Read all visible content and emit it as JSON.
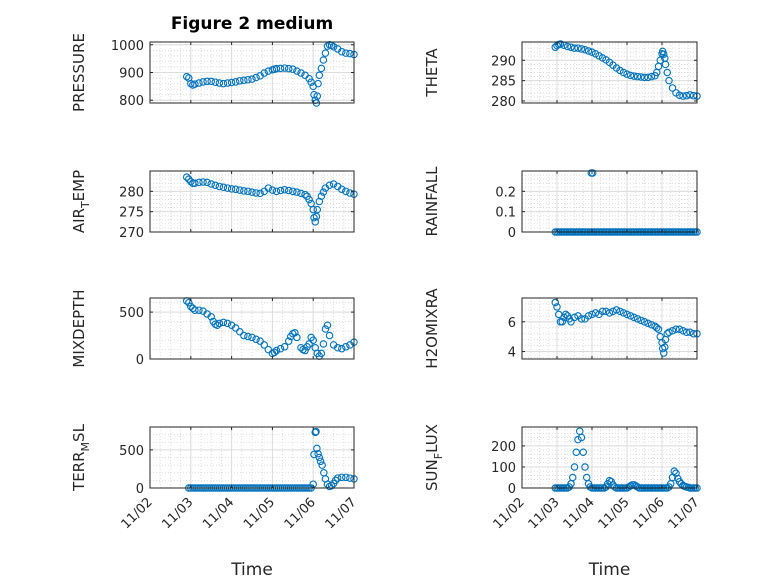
{
  "figure": {
    "title": "Figure 2 medium"
  },
  "chart_data": [
    {
      "type": "scatter",
      "panel": "pressure",
      "ylabel": "PRESSURE",
      "ylabel_sub": "",
      "ylabel_tail": "",
      "xlabel": "",
      "xlim": [
        0,
        5
      ],
      "ylim": [
        790,
        1010
      ],
      "yticks": [
        800,
        900,
        1000
      ],
      "ytick_labels": [
        "800",
        "900",
        "1000"
      ],
      "xticks": [
        0,
        1,
        2,
        3,
        4,
        5
      ],
      "xtick_labels": [],
      "title": "Figure 2 medium",
      "marker_color": "#0072BD",
      "grid": true,
      "x": [
        0.9,
        0.95,
        1.0,
        1.05,
        1.1,
        1.2,
        1.3,
        1.4,
        1.5,
        1.6,
        1.7,
        1.8,
        1.9,
        2.0,
        2.1,
        2.2,
        2.3,
        2.4,
        2.5,
        2.6,
        2.7,
        2.8,
        2.9,
        3.0,
        3.05,
        3.1,
        3.2,
        3.3,
        3.4,
        3.5,
        3.6,
        3.7,
        3.8,
        3.9,
        3.95,
        4.0,
        4.02,
        4.05,
        4.08,
        4.1,
        4.12,
        4.15,
        4.2,
        4.25,
        4.3,
        4.35,
        4.4,
        4.45,
        4.5,
        4.6,
        4.7,
        4.8,
        4.9,
        5.0
      ],
      "y": [
        885,
        880,
        860,
        855,
        858,
        862,
        866,
        868,
        868,
        865,
        862,
        860,
        862,
        864,
        866,
        870,
        872,
        874,
        876,
        882,
        888,
        898,
        905,
        910,
        912,
        914,
        915,
        916,
        914,
        912,
        905,
        898,
        890,
        878,
        865,
        850,
        820,
        800,
        790,
        815,
        860,
        890,
        915,
        945,
        970,
        995,
        1000,
        998,
        993,
        985,
        975,
        970,
        968,
        965
      ]
    },
    {
      "type": "scatter",
      "panel": "theta",
      "ylabel": "THETA",
      "ylabel_sub": "",
      "ylabel_tail": "",
      "xlabel": "",
      "xlim": [
        0,
        5
      ],
      "ylim": [
        279.5,
        294.5
      ],
      "yticks": [
        280,
        285,
        290
      ],
      "ytick_labels": [
        "280",
        "285",
        "290"
      ],
      "xticks": [
        0,
        1,
        2,
        3,
        4,
        5
      ],
      "xtick_labels": [],
      "marker_color": "#0072BD",
      "grid": true,
      "x": [
        0.95,
        1.0,
        1.05,
        1.1,
        1.2,
        1.3,
        1.4,
        1.5,
        1.6,
        1.7,
        1.8,
        1.9,
        2.0,
        2.1,
        2.2,
        2.3,
        2.4,
        2.5,
        2.6,
        2.7,
        2.8,
        2.9,
        3.0,
        3.1,
        3.2,
        3.3,
        3.4,
        3.5,
        3.6,
        3.7,
        3.8,
        3.85,
        3.9,
        3.95,
        4.0,
        4.02,
        4.05,
        4.08,
        4.1,
        4.15,
        4.2,
        4.3,
        4.4,
        4.5,
        4.6,
        4.7,
        4.8,
        4.9,
        5.0
      ],
      "y": [
        293.2,
        293.6,
        293.9,
        294.0,
        293.7,
        293.4,
        293.2,
        293.0,
        293.0,
        292.8,
        292.6,
        292.3,
        292.0,
        291.6,
        291.1,
        290.6,
        290.1,
        289.5,
        288.8,
        288.1,
        287.5,
        287.0,
        286.6,
        286.3,
        286.1,
        286.0,
        285.9,
        285.8,
        285.8,
        286.0,
        286.2,
        287.0,
        288.5,
        290.0,
        291.6,
        292.2,
        291.5,
        290.5,
        289.0,
        287.0,
        285.0,
        283.2,
        282.0,
        281.4,
        281.2,
        281.3,
        281.5,
        281.3,
        281.2
      ]
    },
    {
      "type": "scatter",
      "panel": "air-temp",
      "ylabel": "AIR",
      "ylabel_sub": "T",
      "ylabel_tail": "EMP",
      "xlabel": "",
      "xlim": [
        0,
        5
      ],
      "ylim": [
        270,
        285
      ],
      "yticks": [
        270,
        275,
        280
      ],
      "ytick_labels": [
        "270",
        "275",
        "280"
      ],
      "xticks": [
        0,
        1,
        2,
        3,
        4,
        5
      ],
      "xtick_labels": [],
      "marker_color": "#0072BD",
      "grid": true,
      "x": [
        0.9,
        0.95,
        1.0,
        1.05,
        1.1,
        1.2,
        1.3,
        1.4,
        1.5,
        1.6,
        1.7,
        1.8,
        1.9,
        2.0,
        2.1,
        2.2,
        2.3,
        2.4,
        2.5,
        2.6,
        2.7,
        2.8,
        2.9,
        3.0,
        3.1,
        3.2,
        3.3,
        3.4,
        3.5,
        3.6,
        3.7,
        3.8,
        3.85,
        3.9,
        3.95,
        4.0,
        4.02,
        4.05,
        4.08,
        4.1,
        4.15,
        4.2,
        4.25,
        4.3,
        4.4,
        4.5,
        4.6,
        4.7,
        4.8,
        4.9,
        5.0
      ],
      "y": [
        283.5,
        283.0,
        282.4,
        282.0,
        282.0,
        282.2,
        282.3,
        282.2,
        281.8,
        281.5,
        281.2,
        281.0,
        280.8,
        280.6,
        280.5,
        280.3,
        280.1,
        280.0,
        279.8,
        279.6,
        279.5,
        280.0,
        280.8,
        280.3,
        280.0,
        280.2,
        280.4,
        280.2,
        280.0,
        279.8,
        279.5,
        279.2,
        278.8,
        278.0,
        277.0,
        275.5,
        273.5,
        272.5,
        273.8,
        275.5,
        277.5,
        278.8,
        279.8,
        280.8,
        281.5,
        281.8,
        281.2,
        280.5,
        280.0,
        279.6,
        279.3
      ]
    },
    {
      "type": "scatter",
      "panel": "rainfall",
      "ylabel": "RAINFALL",
      "ylabel_sub": "",
      "ylabel_tail": "",
      "xlabel": "",
      "xlim": [
        0,
        5
      ],
      "ylim": [
        0,
        0.3
      ],
      "yticks": [
        0,
        0.1,
        0.2
      ],
      "ytick_labels": [
        "0",
        "0.1",
        "0.2"
      ],
      "xticks": [
        0,
        1,
        2,
        3,
        4,
        5
      ],
      "xtick_labels": [],
      "marker_color": "#0072BD",
      "grid": true,
      "x": [
        0.95,
        1.0,
        1.05,
        1.1,
        1.15,
        1.2,
        1.25,
        1.3,
        1.35,
        1.4,
        1.45,
        1.5,
        1.55,
        1.6,
        1.65,
        1.7,
        1.75,
        1.8,
        1.85,
        1.9,
        1.95,
        2.0,
        2.05,
        2.1,
        2.15,
        2.2,
        2.25,
        2.3,
        2.35,
        2.4,
        2.45,
        2.5,
        2.55,
        2.6,
        2.65,
        2.7,
        2.75,
        2.8,
        2.85,
        2.9,
        2.95,
        3.0,
        3.05,
        3.1,
        3.15,
        3.2,
        3.25,
        3.3,
        3.35,
        3.4,
        3.45,
        3.5,
        3.55,
        3.6,
        3.65,
        3.7,
        3.75,
        3.8,
        3.85,
        3.9,
        3.95,
        4.0,
        4.05,
        4.1,
        4.15,
        4.2,
        4.25,
        4.3,
        4.35,
        4.4,
        4.45,
        4.5,
        4.55,
        4.6,
        4.65,
        4.7,
        4.75,
        4.8,
        4.85,
        4.9,
        4.95,
        5.0,
        1.98,
        2.02
      ],
      "y": [
        0,
        0,
        0,
        0,
        0,
        0,
        0,
        0,
        0,
        0,
        0,
        0,
        0,
        0,
        0,
        0,
        0,
        0,
        0,
        0,
        0,
        0,
        0,
        0,
        0,
        0,
        0,
        0,
        0,
        0,
        0,
        0,
        0,
        0,
        0,
        0,
        0,
        0,
        0,
        0,
        0,
        0,
        0,
        0,
        0,
        0,
        0,
        0,
        0,
        0,
        0,
        0,
        0,
        0,
        0,
        0,
        0,
        0,
        0,
        0,
        0,
        0,
        0,
        0,
        0,
        0,
        0,
        0,
        0,
        0,
        0,
        0,
        0,
        0,
        0,
        0,
        0,
        0,
        0,
        0,
        0,
        0,
        0.29,
        0.29
      ]
    },
    {
      "type": "scatter",
      "panel": "mixdepth",
      "ylabel": "MIXDEPTH",
      "ylabel_sub": "",
      "ylabel_tail": "",
      "xlabel": "",
      "xlim": [
        0,
        5
      ],
      "ylim": [
        0,
        650
      ],
      "yticks": [
        0,
        500
      ],
      "ytick_labels": [
        "0",
        "500"
      ],
      "xticks": [
        0,
        1,
        2,
        3,
        4,
        5
      ],
      "xtick_labels": [],
      "marker_color": "#0072BD",
      "grid": true,
      "x": [
        0.9,
        0.95,
        1.0,
        1.05,
        1.1,
        1.2,
        1.3,
        1.4,
        1.5,
        1.55,
        1.6,
        1.65,
        1.7,
        1.8,
        1.9,
        2.0,
        2.1,
        2.2,
        2.3,
        2.4,
        2.5,
        2.6,
        2.7,
        2.8,
        2.9,
        3.0,
        3.05,
        3.1,
        3.2,
        3.3,
        3.4,
        3.45,
        3.5,
        3.55,
        3.6,
        3.7,
        3.75,
        3.8,
        3.85,
        3.9,
        3.95,
        4.0,
        4.05,
        4.1,
        4.15,
        4.2,
        4.25,
        4.3,
        4.35,
        4.4,
        4.5,
        4.6,
        4.7,
        4.8,
        4.9,
        5.0
      ],
      "y": [
        620,
        600,
        560,
        540,
        520,
        520,
        510,
        480,
        450,
        400,
        370,
        360,
        380,
        390,
        380,
        360,
        330,
        290,
        250,
        240,
        230,
        210,
        190,
        150,
        100,
        60,
        70,
        90,
        110,
        130,
        190,
        240,
        270,
        280,
        230,
        120,
        100,
        90,
        130,
        160,
        230,
        200,
        120,
        60,
        30,
        60,
        160,
        320,
        360,
        250,
        150,
        120,
        110,
        130,
        150,
        180
      ]
    },
    {
      "type": "scatter",
      "panel": "h2o-mixratio",
      "ylabel": "H2OMIXRA",
      "ylabel_sub": "",
      "ylabel_tail": "",
      "xlabel": "",
      "xlim": [
        0,
        5
      ],
      "ylim": [
        3.5,
        7.6
      ],
      "yticks": [
        4,
        6
      ],
      "ytick_labels": [
        "4",
        "6"
      ],
      "xticks": [
        0,
        1,
        2,
        3,
        4,
        5
      ],
      "xtick_labels": [],
      "marker_color": "#0072BD",
      "grid": true,
      "x": [
        0.95,
        1.0,
        1.05,
        1.1,
        1.15,
        1.2,
        1.25,
        1.3,
        1.35,
        1.4,
        1.5,
        1.6,
        1.7,
        1.8,
        1.9,
        2.0,
        2.1,
        2.2,
        2.3,
        2.4,
        2.5,
        2.6,
        2.7,
        2.8,
        2.9,
        3.0,
        3.1,
        3.2,
        3.3,
        3.4,
        3.5,
        3.6,
        3.7,
        3.8,
        3.85,
        3.9,
        3.95,
        4.0,
        4.02,
        4.05,
        4.08,
        4.1,
        4.15,
        4.2,
        4.3,
        4.4,
        4.5,
        4.6,
        4.7,
        4.8,
        4.9,
        5.0
      ],
      "y": [
        7.3,
        7.0,
        6.5,
        6.0,
        6.0,
        6.3,
        6.5,
        6.4,
        6.2,
        6.0,
        6.3,
        6.4,
        6.2,
        6.2,
        6.4,
        6.5,
        6.6,
        6.5,
        6.7,
        6.7,
        6.6,
        6.7,
        6.8,
        6.7,
        6.6,
        6.5,
        6.4,
        6.3,
        6.2,
        6.1,
        6.0,
        5.9,
        5.8,
        5.7,
        5.6,
        5.5,
        5.0,
        4.6,
        4.2,
        3.9,
        4.3,
        4.8,
        5.2,
        5.3,
        5.4,
        5.5,
        5.5,
        5.4,
        5.3,
        5.3,
        5.2,
        5.2
      ]
    },
    {
      "type": "scatter",
      "panel": "terr-msl",
      "ylabel": "TERR",
      "ylabel_sub": "M",
      "ylabel_tail": "SL",
      "xlabel": "Time",
      "xlim": [
        0,
        5
      ],
      "ylim": [
        0,
        800
      ],
      "yticks": [
        0,
        500
      ],
      "ytick_labels": [
        "0",
        "500"
      ],
      "xticks": [
        0,
        1,
        2,
        3,
        4,
        5
      ],
      "xtick_labels": [
        "11/02",
        "11/03",
        "11/04",
        "11/05",
        "11/06",
        "11/07"
      ],
      "marker_color": "#0072BD",
      "grid": true,
      "x": [
        0.95,
        1.0,
        1.05,
        1.1,
        1.15,
        1.2,
        1.25,
        1.3,
        1.35,
        1.4,
        1.45,
        1.5,
        1.55,
        1.6,
        1.65,
        1.7,
        1.75,
        1.8,
        1.85,
        1.9,
        1.95,
        2.0,
        2.05,
        2.1,
        2.15,
        2.2,
        2.25,
        2.3,
        2.35,
        2.4,
        2.45,
        2.5,
        2.55,
        2.6,
        2.65,
        2.7,
        2.75,
        2.8,
        2.85,
        2.9,
        2.95,
        3.0,
        3.05,
        3.1,
        3.15,
        3.2,
        3.25,
        3.3,
        3.35,
        3.4,
        3.45,
        3.5,
        3.55,
        3.6,
        3.65,
        3.7,
        3.75,
        3.8,
        3.85,
        3.9,
        3.95,
        4.0,
        4.02,
        4.05,
        4.07,
        4.09,
        4.12,
        4.15,
        4.18,
        4.22,
        4.26,
        4.3,
        4.35,
        4.4,
        4.45,
        4.5,
        4.55,
        4.6,
        4.7,
        4.8,
        4.9,
        5.0
      ],
      "y": [
        0,
        0,
        0,
        0,
        0,
        0,
        0,
        0,
        0,
        0,
        0,
        0,
        0,
        0,
        0,
        0,
        0,
        0,
        0,
        0,
        0,
        0,
        0,
        0,
        0,
        0,
        0,
        0,
        0,
        0,
        0,
        0,
        0,
        0,
        0,
        0,
        0,
        0,
        0,
        0,
        0,
        0,
        0,
        0,
        0,
        0,
        0,
        0,
        0,
        0,
        0,
        0,
        0,
        0,
        0,
        0,
        0,
        0,
        0,
        0,
        0,
        50,
        440,
        730,
        740,
        520,
        450,
        400,
        350,
        300,
        200,
        120,
        50,
        20,
        30,
        60,
        100,
        130,
        140,
        140,
        130,
        120
      ]
    },
    {
      "type": "scatter",
      "panel": "sun-flux",
      "ylabel": "SUN",
      "ylabel_sub": "F",
      "ylabel_tail": "LUX",
      "xlabel": "Time",
      "xlim": [
        0,
        5
      ],
      "ylim": [
        0,
        290
      ],
      "yticks": [
        0,
        100,
        200
      ],
      "ytick_labels": [
        "0",
        "100",
        "200"
      ],
      "xticks": [
        0,
        1,
        2,
        3,
        4,
        5
      ],
      "xtick_labels": [
        "11/02",
        "11/03",
        "11/04",
        "11/05",
        "11/06",
        "11/07"
      ],
      "marker_color": "#0072BD",
      "grid": true,
      "x": [
        0.95,
        1.0,
        1.05,
        1.1,
        1.15,
        1.2,
        1.25,
        1.3,
        1.35,
        1.4,
        1.45,
        1.5,
        1.55,
        1.6,
        1.65,
        1.7,
        1.75,
        1.8,
        1.85,
        1.9,
        1.95,
        2.0,
        2.05,
        2.1,
        2.15,
        2.2,
        2.25,
        2.3,
        2.35,
        2.4,
        2.45,
        2.5,
        2.55,
        2.6,
        2.65,
        2.7,
        2.75,
        2.8,
        2.85,
        2.9,
        2.95,
        3.0,
        3.05,
        3.1,
        3.15,
        3.2,
        3.25,
        3.3,
        3.35,
        3.4,
        3.45,
        3.5,
        3.55,
        3.6,
        3.65,
        3.7,
        3.75,
        3.8,
        3.85,
        3.9,
        3.95,
        4.0,
        4.05,
        4.1,
        4.15,
        4.2,
        4.25,
        4.3,
        4.35,
        4.4,
        4.45,
        4.5,
        4.55,
        4.6,
        4.65,
        4.7,
        4.75,
        4.8,
        4.85,
        4.9,
        4.95,
        5.0
      ],
      "y": [
        0,
        0,
        0,
        0,
        0,
        0,
        0,
        0,
        5,
        20,
        50,
        100,
        170,
        230,
        270,
        240,
        170,
        100,
        50,
        20,
        5,
        0,
        0,
        0,
        0,
        0,
        0,
        0,
        0,
        5,
        20,
        35,
        30,
        15,
        5,
        0,
        0,
        0,
        0,
        0,
        0,
        0,
        5,
        10,
        15,
        15,
        10,
        5,
        0,
        0,
        0,
        0,
        0,
        0,
        0,
        0,
        0,
        0,
        0,
        0,
        0,
        0,
        0,
        0,
        0,
        5,
        20,
        50,
        80,
        70,
        45,
        30,
        20,
        12,
        8,
        5,
        3,
        0,
        0,
        0,
        0,
        0
      ]
    }
  ]
}
